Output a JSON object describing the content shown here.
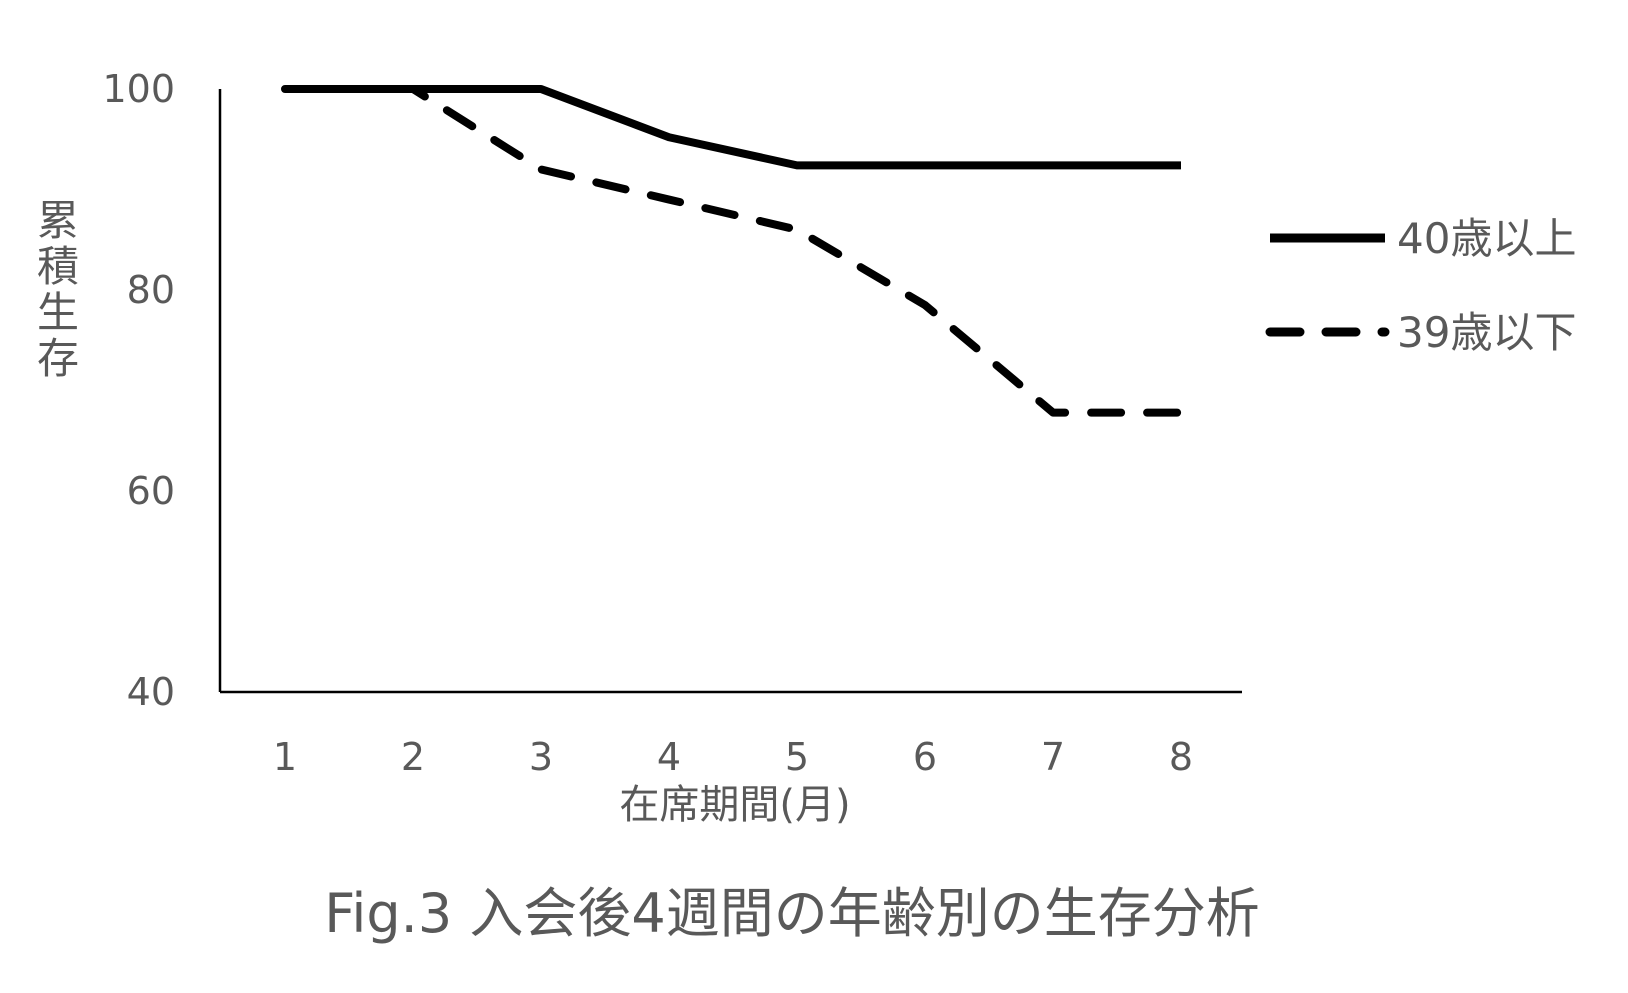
{
  "chart_data": {
    "type": "line",
    "title": "Fig.3 入会後4週間の年齢別の生存分析",
    "xlabel": "在席期間(月)",
    "ylabel": "累積生存",
    "categories": [
      "1",
      "2",
      "3",
      "4",
      "5",
      "6",
      "7",
      "8"
    ],
    "x": [
      1,
      2,
      3,
      4,
      5,
      6,
      7,
      8
    ],
    "ylim": [
      40,
      100
    ],
    "yticks": [
      40,
      60,
      80,
      100
    ],
    "grid": false,
    "legend_position": "right",
    "series": [
      {
        "name": "40歳以上",
        "style": "solid",
        "color": "#000000",
        "values": [
          100,
          100,
          100,
          95.2,
          92.4,
          92.4,
          92.4,
          92.4
        ]
      },
      {
        "name": "39歳以下",
        "style": "dashed",
        "color": "#000000",
        "values": [
          100,
          100,
          92,
          89,
          86,
          78.5,
          67.8,
          67.8
        ]
      }
    ]
  }
}
